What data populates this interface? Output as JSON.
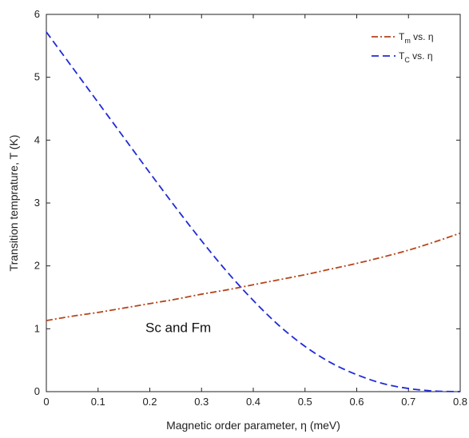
{
  "chart_data": {
    "type": "line",
    "xlabel": "Magnetic order parameter, η (meV)",
    "ylabel": "Transition temprature, T (K)",
    "xlim": [
      0,
      0.8
    ],
    "ylim": [
      0,
      6
    ],
    "x_ticks": [
      0,
      0.1,
      0.2,
      0.3,
      0.4,
      0.5,
      0.6,
      0.7,
      0.8
    ],
    "x_tick_labels": [
      "0",
      "0.1",
      "0.2",
      "0.3",
      "0.4",
      "0.5",
      "0.6",
      "0.7",
      "0.8"
    ],
    "y_ticks": [
      0,
      1,
      2,
      3,
      4,
      5,
      6
    ],
    "y_tick_labels": [
      "0",
      "1",
      "2",
      "3",
      "4",
      "5",
      "6"
    ],
    "grid": false,
    "legend_position": "top-right",
    "series": [
      {
        "name": "T_m vs. η",
        "legend_main": "T",
        "legend_sub": "m",
        "legend_rest": " vs. η",
        "color": "#b5451b",
        "dash": "dashdot",
        "x": [
          0,
          0.05,
          0.1,
          0.15,
          0.2,
          0.25,
          0.3,
          0.35,
          0.4,
          0.45,
          0.5,
          0.55,
          0.6,
          0.65,
          0.7,
          0.75,
          0.8
        ],
        "y": [
          1.13,
          1.2,
          1.26,
          1.33,
          1.4,
          1.47,
          1.55,
          1.62,
          1.7,
          1.78,
          1.86,
          1.95,
          2.04,
          2.14,
          2.25,
          2.38,
          2.52
        ]
      },
      {
        "name": "T_C vs. η",
        "legend_main": "T",
        "legend_sub": "C",
        "legend_rest": " vs. η",
        "color": "#1f2bd8",
        "dash": "dashed",
        "x": [
          0,
          0.05,
          0.1,
          0.15,
          0.2,
          0.25,
          0.3,
          0.35,
          0.4,
          0.45,
          0.5,
          0.55,
          0.6,
          0.65,
          0.7,
          0.75,
          0.8
        ],
        "y": [
          5.72,
          5.16,
          4.6,
          4.04,
          3.48,
          2.93,
          2.4,
          1.9,
          1.45,
          1.05,
          0.72,
          0.46,
          0.27,
          0.13,
          0.05,
          0.01,
          0.0
        ]
      }
    ],
    "annotations": [
      {
        "text": "Sc and Fm",
        "x": 0.255,
        "y": 0.95
      }
    ]
  }
}
